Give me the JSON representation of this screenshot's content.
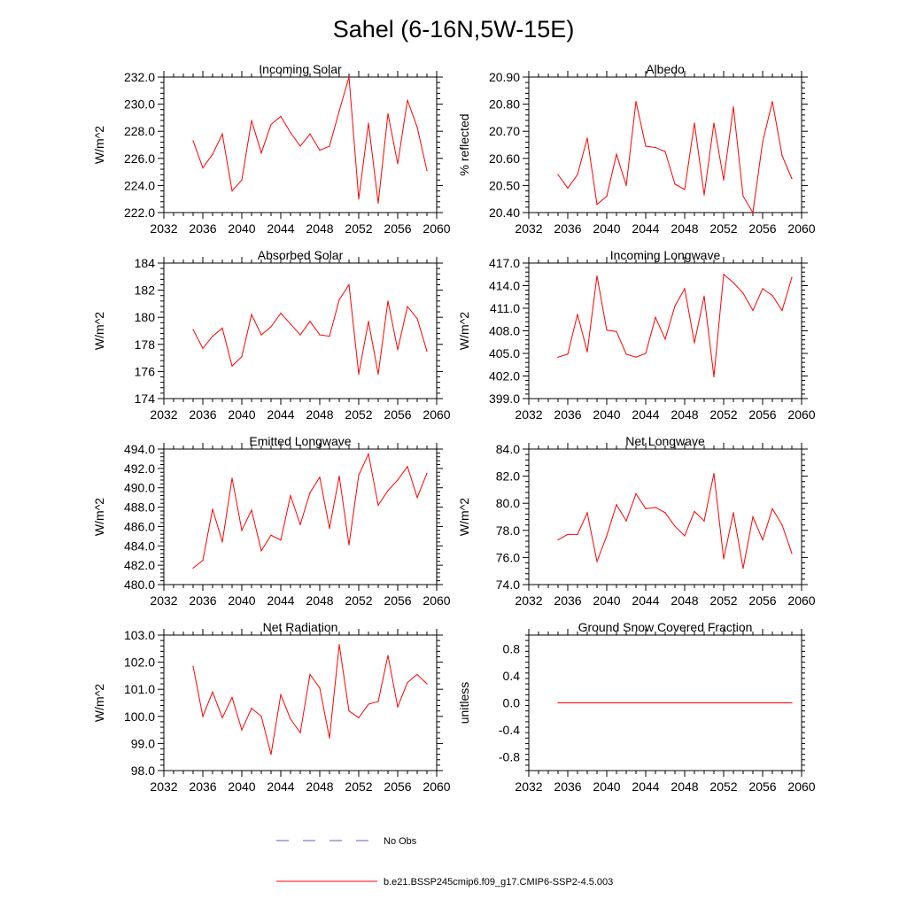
{
  "page": {
    "title": "Sahel (6-16N,5W-15E)"
  },
  "legend": [
    {
      "label": "No Obs",
      "color": "#5b5bd6",
      "style": "dashed"
    },
    {
      "label": "b.e21.BSSP245cmip6.f09_g17.CMIP6-SSP2-4.5.003",
      "color": "#ff0000",
      "style": "solid"
    }
  ],
  "chart_data": [
    {
      "id": "incoming-solar",
      "type": "line",
      "title": "Incoming Solar",
      "ylabel": "W/m^2",
      "xlim": [
        2032,
        2060
      ],
      "xticks": [
        "2032",
        "2036",
        "2040",
        "2044",
        "2048",
        "2052",
        "2056",
        "2060"
      ],
      "ylim": [
        222,
        232
      ],
      "yticks": [
        "222.0",
        "224.0",
        "226.0",
        "228.0",
        "230.0",
        "232.0"
      ],
      "x": [
        2035,
        2036,
        2037,
        2038,
        2039,
        2040,
        2041,
        2042,
        2043,
        2044,
        2045,
        2046,
        2047,
        2048,
        2049,
        2050,
        2051,
        2052,
        2053,
        2054,
        2055,
        2056,
        2057,
        2058,
        2059
      ],
      "series": [
        {
          "name": "b.e21.BSSP245cmip6.f09_g17.CMIP6-SSP2-4.5.003",
          "values": [
            227.3,
            225.3,
            226.3,
            227.8,
            223.6,
            224.4,
            228.8,
            226.4,
            228.5,
            229.1,
            227.9,
            226.9,
            227.8,
            226.6,
            226.9,
            229.5,
            232.0,
            223.0,
            228.6,
            222.7,
            229.3,
            225.6,
            230.3,
            228.3,
            225.1
          ]
        }
      ]
    },
    {
      "id": "albedo",
      "type": "line",
      "title": "Albedo",
      "ylabel": "% reflected",
      "xlim": [
        2032,
        2060
      ],
      "xticks": [
        "2032",
        "2036",
        "2040",
        "2044",
        "2048",
        "2052",
        "2056",
        "2060"
      ],
      "ylim": [
        20.4,
        20.9
      ],
      "yticks": [
        "20.40",
        "20.50",
        "20.60",
        "20.70",
        "20.80",
        "20.90"
      ],
      "x": [
        2035,
        2036,
        2037,
        2038,
        2039,
        2040,
        2041,
        2042,
        2043,
        2044,
        2045,
        2046,
        2047,
        2048,
        2049,
        2050,
        2051,
        2052,
        2053,
        2054,
        2055,
        2056,
        2057,
        2058,
        2059
      ],
      "series": [
        {
          "name": "b.e21.BSSP245cmip6.f09_g17.CMIP6-SSP2-4.5.003",
          "values": [
            20.54,
            20.49,
            20.54,
            20.675,
            20.43,
            20.46,
            20.615,
            20.5,
            20.81,
            20.645,
            20.64,
            20.625,
            20.505,
            20.485,
            20.73,
            20.465,
            20.73,
            20.52,
            20.79,
            20.46,
            20.4,
            20.66,
            20.81,
            20.61,
            20.525
          ]
        }
      ]
    },
    {
      "id": "absorbed-solar",
      "type": "line",
      "title": "Absorbed Solar",
      "ylabel": "W/m^2",
      "xlim": [
        2032,
        2060
      ],
      "xticks": [
        "2032",
        "2036",
        "2040",
        "2044",
        "2048",
        "2052",
        "2056",
        "2060"
      ],
      "ylim": [
        174,
        184
      ],
      "yticks": [
        "174",
        "176",
        "178",
        "180",
        "182",
        "184"
      ],
      "x": [
        2035,
        2036,
        2037,
        2038,
        2039,
        2040,
        2041,
        2042,
        2043,
        2044,
        2045,
        2046,
        2047,
        2048,
        2049,
        2050,
        2051,
        2052,
        2053,
        2054,
        2055,
        2056,
        2057,
        2058,
        2059
      ],
      "series": [
        {
          "name": "b.e21.BSSP245cmip6.f09_g17.CMIP6-SSP2-4.5.003",
          "values": [
            179.1,
            177.7,
            178.6,
            179.2,
            176.4,
            177.1,
            180.2,
            178.7,
            179.3,
            180.3,
            179.5,
            178.7,
            179.7,
            178.7,
            178.6,
            181.3,
            182.4,
            175.8,
            179.7,
            175.8,
            181.2,
            177.6,
            180.8,
            179.9,
            177.5
          ]
        }
      ]
    },
    {
      "id": "incoming-longwave",
      "type": "line",
      "title": "Incoming Longwave",
      "ylabel": "W/m^2",
      "xlim": [
        2032,
        2060
      ],
      "xticks": [
        "2032",
        "2036",
        "2040",
        "2044",
        "2048",
        "2052",
        "2056",
        "2060"
      ],
      "ylim": [
        399,
        417
      ],
      "yticks": [
        "399.0",
        "402.0",
        "405.0",
        "408.0",
        "411.0",
        "414.0",
        "417.0"
      ],
      "x": [
        2035,
        2036,
        2037,
        2038,
        2039,
        2040,
        2041,
        2042,
        2043,
        2044,
        2045,
        2046,
        2047,
        2048,
        2049,
        2050,
        2051,
        2052,
        2053,
        2054,
        2055,
        2056,
        2057,
        2058,
        2059
      ],
      "series": [
        {
          "name": "b.e21.BSSP245cmip6.f09_g17.CMIP6-SSP2-4.5.003",
          "values": [
            404.5,
            404.9,
            410.2,
            405.2,
            415.3,
            408.1,
            407.9,
            404.9,
            404.5,
            405.0,
            409.8,
            406.9,
            411.3,
            413.6,
            406.4,
            412.6,
            401.9,
            415.5,
            414.4,
            413.0,
            410.7,
            413.6,
            412.7,
            410.7,
            415.1
          ]
        }
      ]
    },
    {
      "id": "emitted-longwave",
      "type": "line",
      "title": "Emitted Longwave",
      "ylabel": "W/m^2",
      "xlim": [
        2032,
        2060
      ],
      "xticks": [
        "2032",
        "2036",
        "2040",
        "2044",
        "2048",
        "2052",
        "2056",
        "2060"
      ],
      "ylim": [
        480,
        494
      ],
      "yticks": [
        "480.0",
        "482.0",
        "484.0",
        "486.0",
        "488.0",
        "490.0",
        "492.0",
        "494.0"
      ],
      "x": [
        2035,
        2036,
        2037,
        2038,
        2039,
        2040,
        2041,
        2042,
        2043,
        2044,
        2045,
        2046,
        2047,
        2048,
        2049,
        2050,
        2051,
        2052,
        2053,
        2054,
        2055,
        2056,
        2057,
        2058,
        2059
      ],
      "series": [
        {
          "name": "b.e21.BSSP245cmip6.f09_g17.CMIP6-SSP2-4.5.003",
          "values": [
            481.7,
            482.5,
            487.8,
            484.4,
            491.0,
            485.6,
            487.7,
            483.5,
            485.1,
            484.6,
            489.2,
            486.2,
            489.5,
            491.1,
            485.8,
            491.2,
            484.1,
            491.3,
            493.5,
            488.2,
            489.7,
            490.8,
            492.2,
            489.0,
            491.5
          ]
        }
      ]
    },
    {
      "id": "net-longwave",
      "type": "line",
      "title": "Net Longwave",
      "ylabel": "W/m^2",
      "xlim": [
        2032,
        2060
      ],
      "xticks": [
        "2032",
        "2036",
        "2040",
        "2044",
        "2048",
        "2052",
        "2056",
        "2060"
      ],
      "ylim": [
        74,
        84
      ],
      "yticks": [
        "74.0",
        "76.0",
        "78.0",
        "80.0",
        "82.0",
        "84.0"
      ],
      "x": [
        2035,
        2036,
        2037,
        2038,
        2039,
        2040,
        2041,
        2042,
        2043,
        2044,
        2045,
        2046,
        2047,
        2048,
        2049,
        2050,
        2051,
        2052,
        2053,
        2054,
        2055,
        2056,
        2057,
        2058,
        2059
      ],
      "series": [
        {
          "name": "b.e21.BSSP245cmip6.f09_g17.CMIP6-SSP2-4.5.003",
          "values": [
            77.3,
            77.7,
            77.7,
            79.3,
            75.7,
            77.6,
            79.9,
            78.7,
            80.7,
            79.6,
            79.7,
            79.3,
            78.3,
            77.6,
            79.4,
            78.7,
            82.2,
            75.9,
            79.3,
            75.2,
            79.0,
            77.3,
            79.6,
            78.4,
            76.3
          ]
        }
      ]
    },
    {
      "id": "net-radiation",
      "type": "line",
      "title": "Net Radiation",
      "ylabel": "W/m^2",
      "xlim": [
        2032,
        2060
      ],
      "xticks": [
        "2032",
        "2036",
        "2040",
        "2044",
        "2048",
        "2052",
        "2056",
        "2060"
      ],
      "ylim": [
        98,
        103
      ],
      "yticks": [
        "98.0",
        "99.0",
        "100.0",
        "101.0",
        "102.0",
        "103.0"
      ],
      "x": [
        2035,
        2036,
        2037,
        2038,
        2039,
        2040,
        2041,
        2042,
        2043,
        2044,
        2045,
        2046,
        2047,
        2048,
        2049,
        2050,
        2051,
        2052,
        2053,
        2054,
        2055,
        2056,
        2057,
        2058,
        2059
      ],
      "series": [
        {
          "name": "b.e21.BSSP245cmip6.f09_g17.CMIP6-SSP2-4.5.003",
          "values": [
            101.85,
            100.0,
            100.9,
            99.95,
            100.7,
            99.5,
            100.3,
            100.0,
            98.6,
            100.8,
            99.9,
            99.4,
            101.55,
            101.05,
            99.2,
            102.65,
            100.2,
            99.95,
            100.45,
            100.55,
            102.25,
            100.35,
            101.25,
            101.55,
            101.2
          ]
        }
      ]
    },
    {
      "id": "ground-snow-covered-fraction",
      "type": "line",
      "title": "Ground Snow Covered Fraction",
      "ylabel": "unitless",
      "xlim": [
        2032,
        2060
      ],
      "xticks": [
        "2032",
        "2036",
        "2040",
        "2044",
        "2048",
        "2052",
        "2056",
        "2060"
      ],
      "ylim": [
        -1.0,
        1.0
      ],
      "yticks": [
        "-0.8",
        "-0.4",
        "0.0",
        "0.4",
        "0.8"
      ],
      "x": [
        2035,
        2036,
        2037,
        2038,
        2039,
        2040,
        2041,
        2042,
        2043,
        2044,
        2045,
        2046,
        2047,
        2048,
        2049,
        2050,
        2051,
        2052,
        2053,
        2054,
        2055,
        2056,
        2057,
        2058,
        2059
      ],
      "series": [
        {
          "name": "b.e21.BSSP245cmip6.f09_g17.CMIP6-SSP2-4.5.003",
          "values": [
            0,
            0,
            0,
            0,
            0,
            0,
            0,
            0,
            0,
            0,
            0,
            0,
            0,
            0,
            0,
            0,
            0,
            0,
            0,
            0,
            0,
            0,
            0,
            0,
            0
          ]
        }
      ]
    }
  ]
}
